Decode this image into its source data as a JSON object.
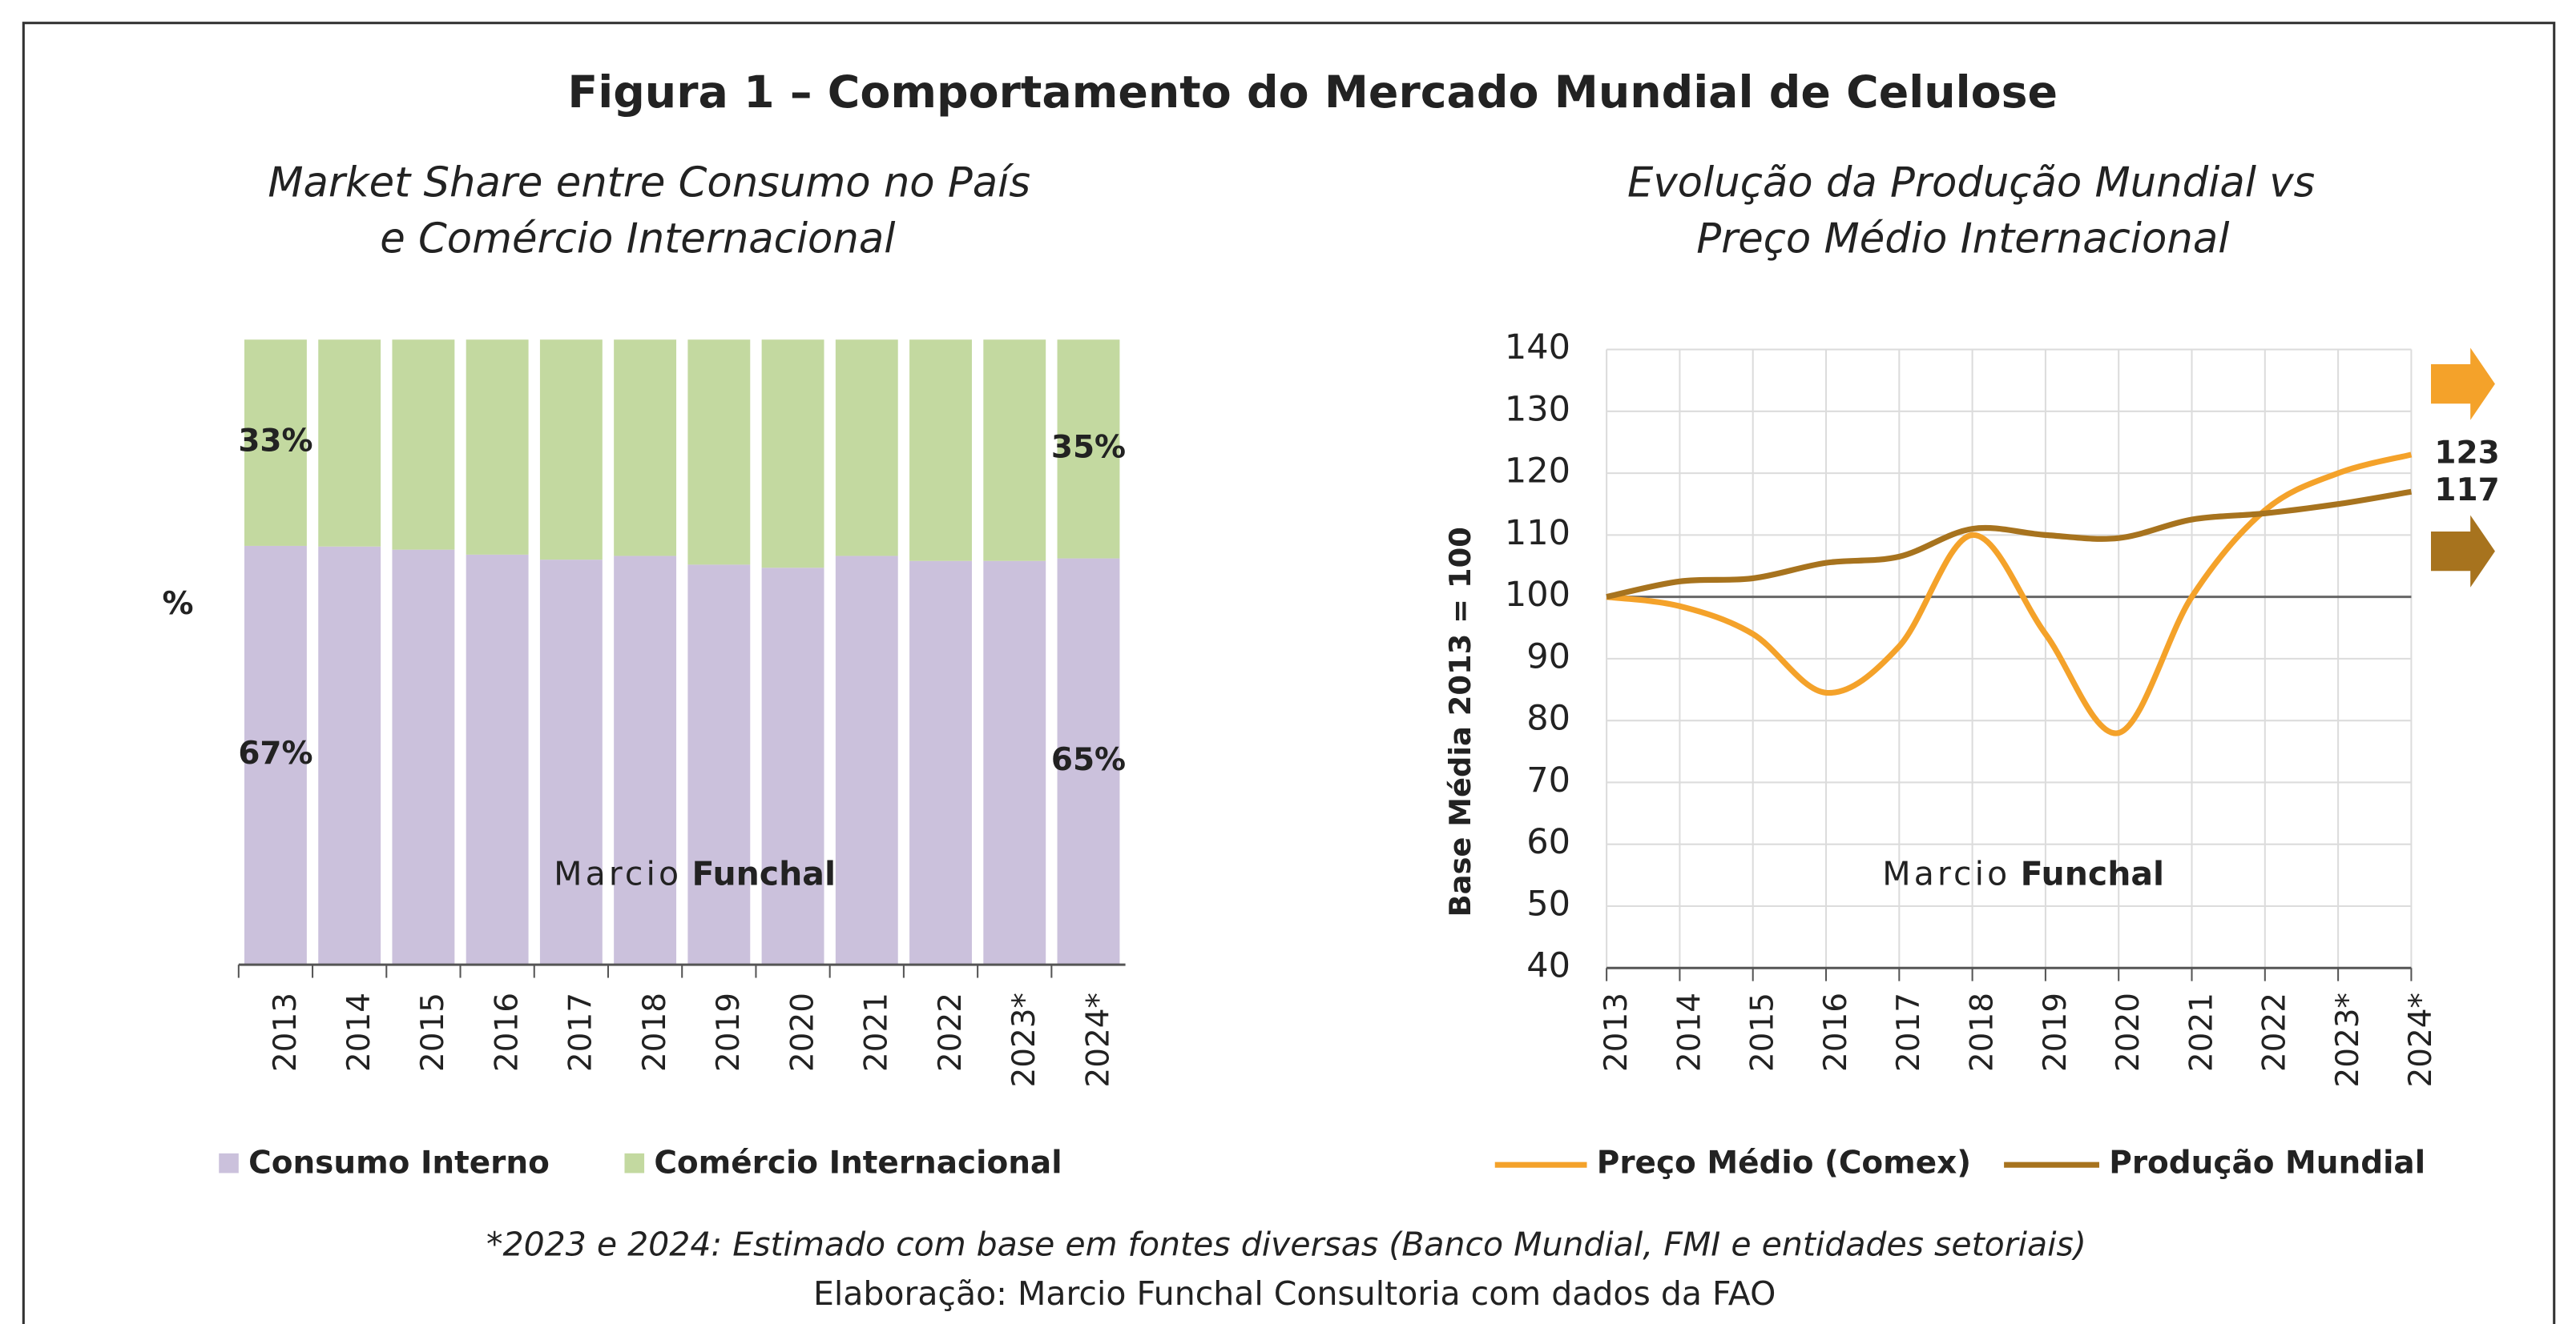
{
  "title": "Figura 1 – Comportamento do Mercado Mundial de Celulose",
  "chart_data": [
    {
      "type": "stacked_bar",
      "subtitle": [
        "Market Share entre Consumo no País",
        "e Comércio Internacional"
      ],
      "y_label": "%",
      "categories": [
        "2013",
        "2014",
        "2015",
        "2016",
        "2017",
        "2018",
        "2019",
        "2020",
        "2021",
        "2022",
        "2023*",
        "2024*"
      ],
      "ylim": [
        0,
        100
      ],
      "series": [
        {
          "name": "Consumo Interno",
          "color": "#cbc1dc",
          "values": [
            67,
            66.9,
            66.4,
            65.6,
            64.8,
            65.4,
            64,
            63.5,
            65.4,
            64.6,
            64.6,
            65
          ],
          "value_labels": [
            "67%",
            null,
            null,
            null,
            null,
            null,
            null,
            null,
            null,
            null,
            null,
            "65%"
          ]
        },
        {
          "name": "Comércio Internacional",
          "color": "#c3d9a0",
          "values": [
            33,
            33.1,
            33.6,
            34.4,
            35.2,
            34.6,
            36,
            36.5,
            34.6,
            35.4,
            35.4,
            35
          ],
          "value_labels": [
            "33%",
            null,
            null,
            null,
            null,
            null,
            null,
            null,
            null,
            null,
            null,
            "35%"
          ]
        }
      ]
    },
    {
      "type": "line",
      "subtitle": [
        "Evolução da Produção Mundial vs",
        "Preço Médio Internacional"
      ],
      "y_label": "Base Média 2013 = 100",
      "categories": [
        "2013",
        "2014",
        "2015",
        "2016",
        "2017",
        "2018",
        "2019",
        "2020",
        "2021",
        "2022",
        "2023*",
        "2024*"
      ],
      "ylim": [
        40,
        140
      ],
      "yticks": [
        40,
        50,
        60,
        70,
        80,
        90,
        100,
        110,
        120,
        130,
        140
      ],
      "grid": true,
      "series": [
        {
          "name": "Preço Médio (Comex)",
          "color": "#f4a22a",
          "values": [
            100,
            98.5,
            94,
            84.5,
            92,
            110,
            94,
            78,
            100,
            114,
            120,
            123
          ]
        },
        {
          "name": "Produção Mundial",
          "color": "#a7731e",
          "values": [
            100,
            102.5,
            103,
            105.5,
            106.5,
            111,
            110,
            109.5,
            112.5,
            113.5,
            115,
            117
          ]
        }
      ]
    }
  ],
  "watermark": {
    "first": "Marcio",
    "last": "Funchal"
  },
  "notes": [
    "*2023 e 2024: Estimado com base em fontes diversas (Banco Mundial, FMI e entidades setoriais)",
    "Elaboração: Marcio Funchal Consultoria com dados da FAO"
  ]
}
